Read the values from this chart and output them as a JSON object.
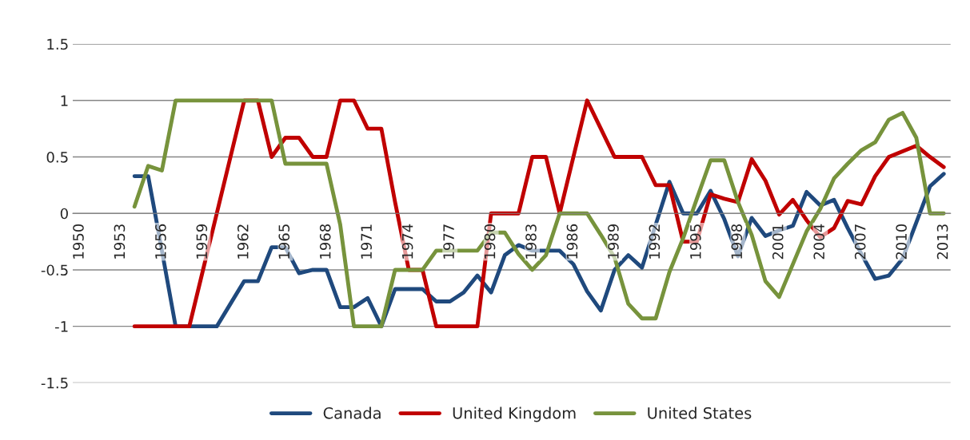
{
  "chart_data": {
    "type": "line",
    "categories": [
      "1950",
      null,
      null,
      "1953",
      null,
      null,
      "1956",
      null,
      null,
      "1959",
      null,
      null,
      "1962",
      null,
      null,
      "1965",
      null,
      null,
      "1968",
      null,
      null,
      "1971",
      null,
      null,
      "1974",
      null,
      null,
      "1977",
      null,
      null,
      "1980",
      null,
      null,
      "1983",
      null,
      null,
      "1986",
      null,
      null,
      "1989",
      null,
      null,
      "1992",
      null,
      null,
      "1995",
      null,
      null,
      "1998",
      null,
      null,
      "2001",
      null,
      null,
      "2004",
      null,
      null,
      "2007",
      null,
      null,
      "2010",
      null,
      null,
      "2013"
    ],
    "series": [
      {
        "name": "Canada",
        "color": "#1f497d",
        "values": [
          null,
          null,
          null,
          null,
          0.33,
          0.33,
          -0.33,
          -1,
          -1,
          -1,
          -1,
          -0.8,
          -0.6,
          -0.6,
          -0.3,
          -0.3,
          -0.53,
          -0.5,
          -0.5,
          -0.83,
          -0.83,
          -0.75,
          -1,
          -0.67,
          -0.67,
          -0.67,
          -0.78,
          -0.78,
          -0.7,
          -0.55,
          -0.7,
          -0.37,
          -0.28,
          -0.33,
          -0.33,
          -0.33,
          -0.45,
          -0.69,
          -0.86,
          -0.5,
          -0.37,
          -0.48,
          -0.1,
          0.28,
          0,
          0,
          0.2,
          -0.05,
          -0.38,
          -0.04,
          -0.2,
          -0.15,
          -0.11,
          0.19,
          0.07,
          0.12,
          -0.13,
          -0.36,
          -0.58,
          -0.55,
          -0.4,
          -0.08,
          0.24,
          0.35
        ]
      },
      {
        "name": "United Kingdom",
        "color": "#c00000",
        "values": [
          null,
          null,
          null,
          null,
          -1,
          -1,
          -1,
          -1,
          -1,
          -0.5,
          0,
          0.5,
          1,
          1,
          0.5,
          0.67,
          0.67,
          0.5,
          0.5,
          1,
          1,
          0.75,
          0.75,
          0.1,
          -0.5,
          -0.5,
          -1,
          -1,
          -1,
          -1,
          0,
          0,
          0,
          0.5,
          0.5,
          0,
          0.5,
          1,
          0.75,
          0.5,
          0.5,
          0.5,
          0.25,
          0.25,
          -0.25,
          -0.25,
          0.17,
          0.13,
          0.1,
          0.48,
          0.29,
          -0.01,
          0.12,
          -0.06,
          -0.21,
          -0.13,
          0.11,
          0.08,
          0.33,
          0.5,
          0.55,
          0.6,
          0.5,
          0.41
        ]
      },
      {
        "name": "United States",
        "color": "#77933c",
        "values": [
          null,
          null,
          null,
          null,
          0.06,
          0.42,
          0.38,
          1,
          1,
          1,
          1,
          1,
          1,
          1,
          1,
          0.44,
          0.44,
          0.44,
          0.44,
          -0.1,
          -1,
          -1,
          -1,
          -0.5,
          -0.5,
          -0.5,
          -0.33,
          -0.33,
          -0.33,
          -0.33,
          -0.17,
          -0.17,
          -0.36,
          -0.5,
          -0.37,
          0,
          0,
          0,
          -0.19,
          -0.39,
          -0.8,
          -0.93,
          -0.93,
          -0.52,
          -0.22,
          0.13,
          0.47,
          0.47,
          0.1,
          -0.19,
          -0.6,
          -0.74,
          -0.45,
          -0.16,
          0.04,
          0.31,
          0.44,
          0.56,
          0.63,
          0.83,
          0.89,
          0.67,
          0,
          0
        ]
      }
    ],
    "ylim": [
      -1.5,
      1.5
    ],
    "yticks": [
      -1.5,
      -1,
      -0.5,
      0,
      0.5,
      1,
      1.5
    ],
    "grid": "y",
    "legend": "bottom",
    "line_style": "solid",
    "marker": "none"
  }
}
